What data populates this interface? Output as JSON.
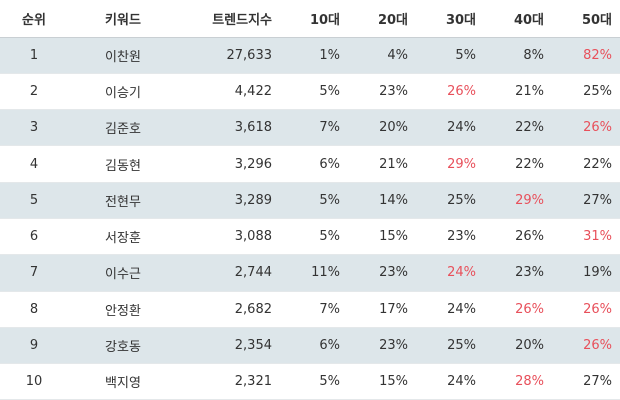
{
  "table": {
    "headers": {
      "rank": "순위",
      "keyword": "키워드",
      "trend": "트렌드지수",
      "age10": "10대",
      "age20": "20대",
      "age30": "30대",
      "age40": "40대",
      "age50": "50대"
    },
    "highlight_color": "#e8505b",
    "stripe_color": "#dde6ea",
    "rows": [
      {
        "rank": "1",
        "keyword": "이찬원",
        "trend": "27,633",
        "age10": "1%",
        "age20": "4%",
        "age30": "5%",
        "age40": "8%",
        "age50": "82%",
        "highlight": "age50"
      },
      {
        "rank": "2",
        "keyword": "이승기",
        "trend": "4,422",
        "age10": "5%",
        "age20": "23%",
        "age30": "26%",
        "age40": "21%",
        "age50": "25%",
        "highlight": "age30"
      },
      {
        "rank": "3",
        "keyword": "김준호",
        "trend": "3,618",
        "age10": "7%",
        "age20": "20%",
        "age30": "24%",
        "age40": "22%",
        "age50": "26%",
        "highlight": "age50"
      },
      {
        "rank": "4",
        "keyword": "김동현",
        "trend": "3,296",
        "age10": "6%",
        "age20": "21%",
        "age30": "29%",
        "age40": "22%",
        "age50": "22%",
        "highlight": "age30"
      },
      {
        "rank": "5",
        "keyword": "전현무",
        "trend": "3,289",
        "age10": "5%",
        "age20": "14%",
        "age30": "25%",
        "age40": "29%",
        "age50": "27%",
        "highlight": "age40"
      },
      {
        "rank": "6",
        "keyword": "서장훈",
        "trend": "3,088",
        "age10": "5%",
        "age20": "15%",
        "age30": "23%",
        "age40": "26%",
        "age50": "31%",
        "highlight": "age50"
      },
      {
        "rank": "7",
        "keyword": "이수근",
        "trend": "2,744",
        "age10": "11%",
        "age20": "23%",
        "age30": "24%",
        "age40": "23%",
        "age50": "19%",
        "highlight": "age30"
      },
      {
        "rank": "8",
        "keyword": "안정환",
        "trend": "2,682",
        "age10": "7%",
        "age20": "17%",
        "age30": "24%",
        "age40": "26%",
        "age50": "26%",
        "highlight": "age40,age50"
      },
      {
        "rank": "9",
        "keyword": "강호동",
        "trend": "2,354",
        "age10": "6%",
        "age20": "23%",
        "age30": "25%",
        "age40": "20%",
        "age50": "26%",
        "highlight": "age50"
      },
      {
        "rank": "10",
        "keyword": "백지영",
        "trend": "2,321",
        "age10": "5%",
        "age20": "15%",
        "age30": "24%",
        "age40": "28%",
        "age50": "27%",
        "highlight": "age40"
      }
    ]
  }
}
